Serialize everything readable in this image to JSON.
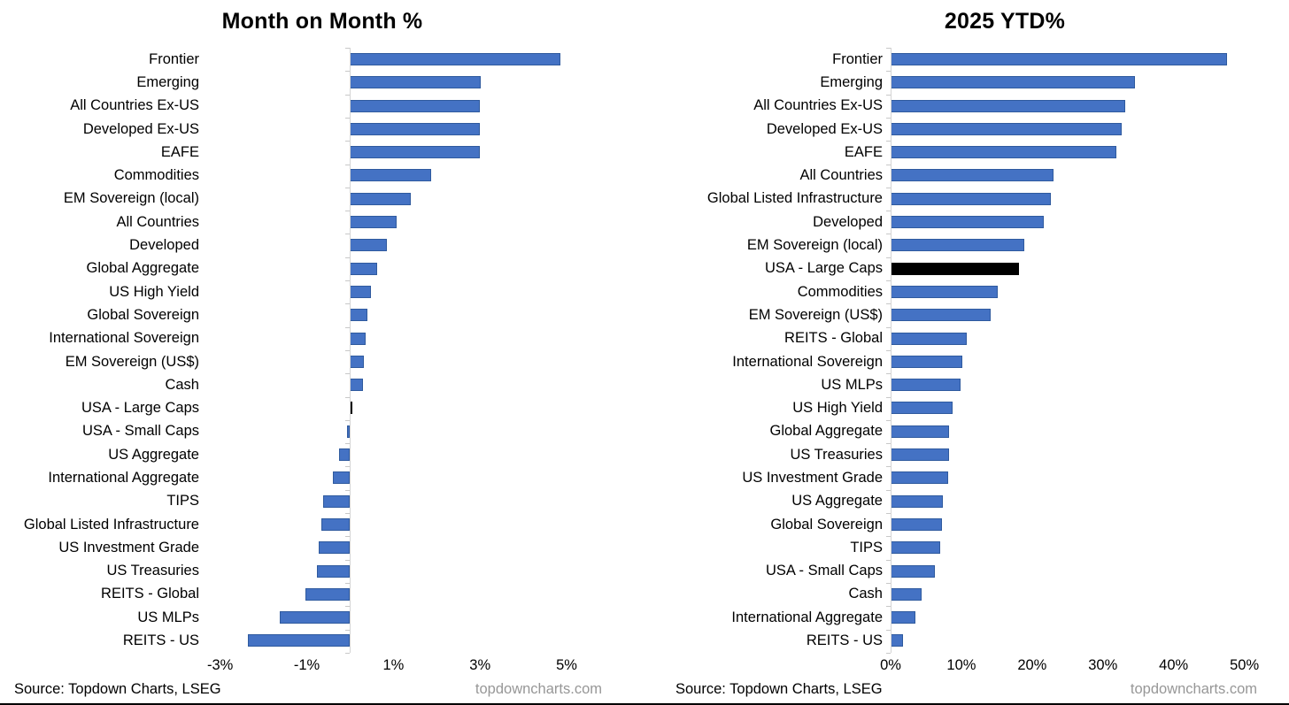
{
  "chart_data": [
    {
      "type": "bar",
      "orientation": "horizontal",
      "title": "Month on Month %",
      "categories": [
        "Frontier",
        "Emerging",
        "All Countries Ex-US",
        "Developed Ex-US",
        "EAFE",
        "Commodities",
        "EM Sovereign (local)",
        "All Countries",
        "Developed",
        "Global Aggregate",
        "US High Yield",
        "Global Sovereign",
        "International Sovereign",
        "EM Sovereign (US$)",
        "Cash",
        "USA - Large Caps",
        "USA - Small Caps",
        "US Aggregate",
        "International Aggregate",
        "TIPS",
        "Global Listed Infrastructure",
        "US Investment Grade",
        "US Treasuries",
        "REITS - Global",
        "US MLPs",
        "REITS - US"
      ],
      "values": [
        4.85,
        3.02,
        3.0,
        3.0,
        3.0,
        1.87,
        1.41,
        1.08,
        0.84,
        0.62,
        0.49,
        0.4,
        0.36,
        0.32,
        0.29,
        0.05,
        -0.07,
        -0.26,
        -0.4,
        -0.63,
        -0.67,
        -0.73,
        -0.77,
        -1.03,
        -1.62,
        -2.36
      ],
      "highlight_category": "USA - Large Caps",
      "bar_color": "#4472C4",
      "bar_border_color": "#2F5A9E",
      "highlight_color": "#000000",
      "axis_color": "#D4D4D4",
      "xlim": [
        -3.3,
        6.0
      ],
      "ticks": [
        -3,
        -1,
        1,
        3,
        5
      ],
      "tick_labels": [
        "-3%",
        "-1%",
        "1%",
        "3%",
        "5%"
      ],
      "grid": false,
      "legend": "none",
      "source": "Source: Topdown Charts, LSEG",
      "watermark": "topdowncharts.com"
    },
    {
      "type": "bar",
      "orientation": "horizontal",
      "title": "2025 YTD%",
      "categories": [
        "Frontier",
        "Emerging",
        "All Countries Ex-US",
        "Developed Ex-US",
        "EAFE",
        "All Countries",
        "Global Listed Infrastructure",
        "Developed",
        "EM Sovereign (local)",
        "USA - Large Caps",
        "Commodities",
        "EM Sovereign (US$)",
        "REITS - Global",
        "International Sovereign",
        "US MLPs",
        "US High Yield",
        "Global Aggregate",
        "US Treasuries",
        "US Investment Grade",
        "US Aggregate",
        "Global Sovereign",
        "TIPS",
        "USA - Small Caps",
        "Cash",
        "International Aggregate",
        "REITS - US"
      ],
      "values": [
        47.6,
        34.5,
        33.2,
        32.7,
        31.9,
        23.0,
        22.7,
        21.7,
        18.9,
        18.1,
        15.2,
        14.1,
        10.8,
        10.1,
        9.9,
        8.8,
        8.3,
        8.3,
        8.1,
        7.4,
        7.3,
        7.0,
        6.2,
        4.4,
        3.5,
        1.8
      ],
      "highlight_category": "USA - Large Caps",
      "bar_color": "#4472C4",
      "bar_border_color": "#2F5A9E",
      "highlight_color": "#000000",
      "axis_color": "#D4D4D4",
      "xlim": [
        0,
        51.8
      ],
      "ticks": [
        0,
        10,
        20,
        30,
        40,
        50
      ],
      "tick_labels": [
        "0%",
        "10%",
        "20%",
        "30%",
        "40%",
        "50%"
      ],
      "grid": false,
      "legend": "none",
      "source": "Source: Topdown Charts, LSEG",
      "watermark": "topdowncharts.com"
    }
  ]
}
